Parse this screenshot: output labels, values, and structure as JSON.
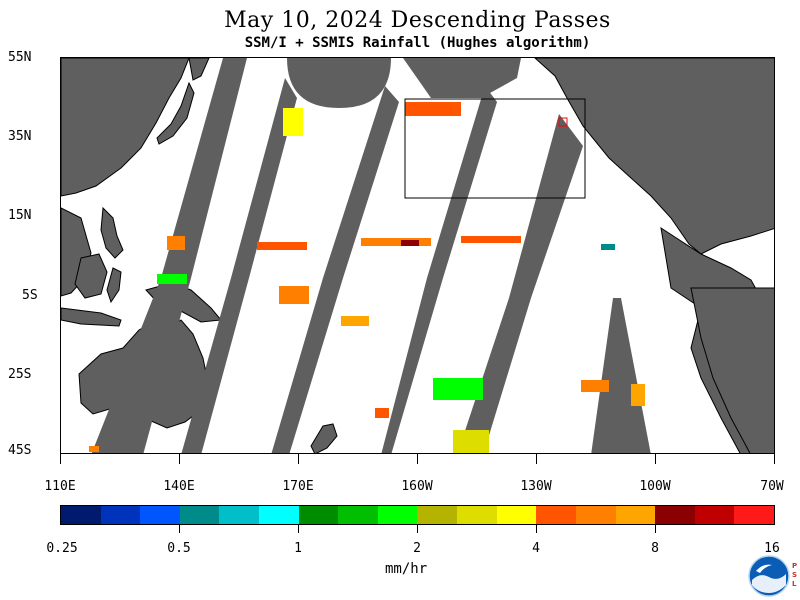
{
  "header": {
    "title": "May 10, 2024  Descending Passes",
    "subtitle": "SSM/I + SSMIS Rainfall (Hughes algorithm)"
  },
  "map": {
    "lat_labels": [
      "55N",
      "35N",
      "15N",
      "5S",
      "25S",
      "45S"
    ],
    "lon_labels": [
      "110E",
      "140E",
      "170E",
      "160W",
      "130W",
      "100W",
      "70W"
    ],
    "extent_lon": [
      110,
      290
    ],
    "extent_lat": [
      -45,
      55
    ],
    "colors": {
      "land": "#5f5f5f",
      "coast": "#000000",
      "no_data": "#5f5f5f",
      "ocean": "#ffffff",
      "box": "#000000",
      "marker": "#ff0000"
    }
  },
  "colorbar": {
    "tick_labels": [
      "0.25",
      "0.5",
      "1",
      "2",
      "4",
      "8",
      "16"
    ],
    "units": "mm/hr",
    "colors": [
      "#001a6e",
      "#0033bb",
      "#0055ff",
      "#008b8b",
      "#00bfc9",
      "#00ffff",
      "#008c00",
      "#00bf00",
      "#00ff00",
      "#b3b300",
      "#dddd00",
      "#ffff00",
      "#ff5500",
      "#ff8000",
      "#ffa500",
      "#8b0000",
      "#c00000",
      "#ff1a1a"
    ]
  },
  "logo": {
    "name": "NOAA",
    "mark": "PSL"
  }
}
